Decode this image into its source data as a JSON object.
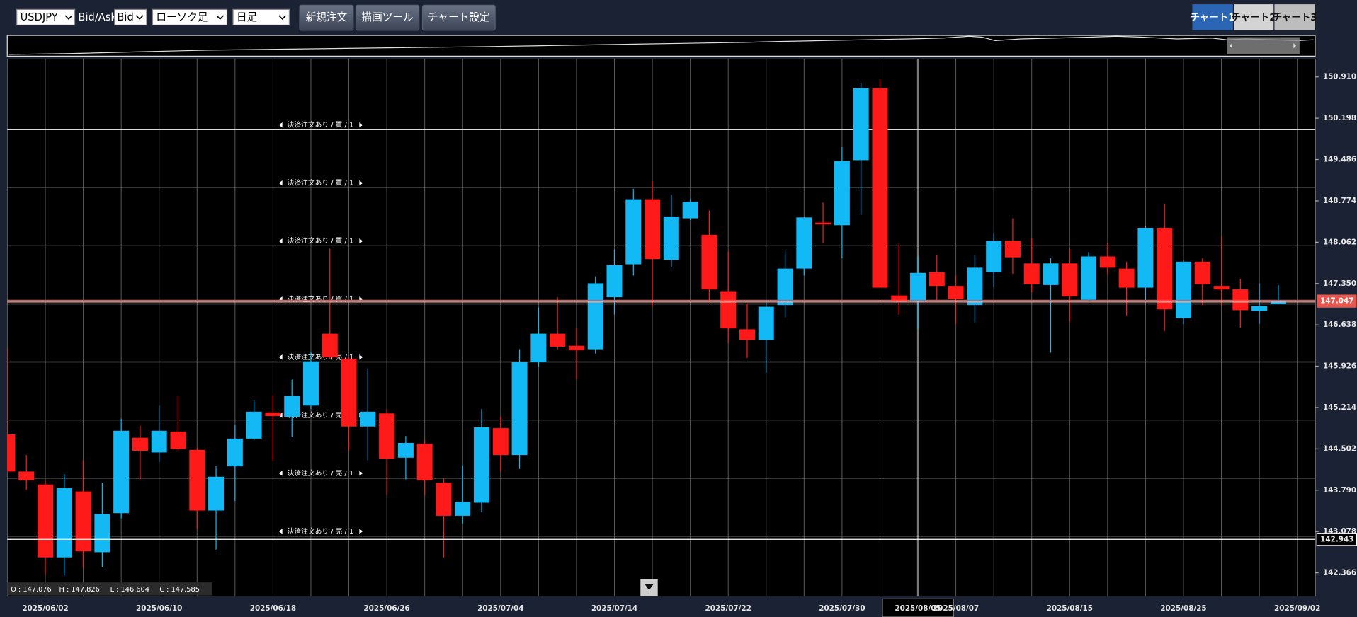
{
  "toolbar": {
    "symbol": "USDJPY",
    "bidask_label": "Bid/Ask",
    "bidask": "Bid",
    "chart_style": "ローソク足",
    "period": "日足",
    "buttons": [
      "新規注文",
      "描画ツール",
      "チャート設定"
    ],
    "tabs": [
      "チャート1",
      "チャート2",
      "チャート3"
    ]
  },
  "chart_data": {
    "type": "candlestick",
    "categories": [
      null,
      null,
      "2025/06/02",
      null,
      null,
      null,
      null,
      null,
      "2025/06/10",
      null,
      null,
      null,
      null,
      null,
      "2025/06/18",
      null,
      null,
      null,
      null,
      null,
      "2025/06/26",
      null,
      null,
      null,
      null,
      null,
      "2025/07/04",
      null,
      null,
      null,
      null,
      null,
      "2025/07/14",
      null,
      null,
      null,
      null,
      null,
      "2025/07/22",
      null,
      null,
      null,
      null,
      null,
      "2025/07/30",
      null,
      null,
      null,
      "2025/08/05",
      null,
      "2025/08/07",
      null,
      null,
      null,
      null,
      null,
      "2025/08/15",
      null,
      null,
      null,
      null,
      null,
      "2025/08/25",
      null,
      null,
      null,
      null,
      null,
      "2025/09/02"
    ],
    "open": [
      144.754,
      144.112,
      143.888,
      142.633,
      143.768,
      142.722,
      143.395,
      144.694,
      144.441,
      144.799,
      144.485,
      143.44,
      144.201,
      144.679,
      145.128,
      145.053,
      145.247,
      146.487,
      146.054,
      144.888,
      145.113,
      144.351,
      144.59,
      143.917,
      143.35,
      143.574,
      144.859,
      144.396,
      145.994,
      146.487,
      146.278,
      146.218,
      147.114,
      147.682,
      148.803,
      147.757,
      148.474,
      148.19,
      147.219,
      146.562,
      146.383,
      146.98,
      147.608,
      148.4,
      148.355,
      149.475,
      150.715,
      147.145,
      147.04,
      147.548,
      147.309,
      146.98,
      147.548,
      148.086,
      147.697,
      147.324,
      147.697,
      147.07,
      147.817,
      147.608,
      147.279,
      148.31,
      146.756,
      147.727,
      147.309,
      147.249,
      146.876,
      146.995,
      null
    ],
    "high": [
      146.248,
      144.396,
      143.95,
      144.067,
      144.306,
      143.917,
      145.023,
      144.904,
      145.247,
      145.412,
      144.52,
      144.201,
      144.918,
      145.337,
      145.426,
      145.695,
      146.173,
      147.951,
      146.08,
      145.89,
      145.188,
      144.724,
      144.649,
      143.992,
      144.216,
      145.188,
      145.053,
      146.218,
      146.935,
      147.114,
      146.577,
      147.473,
      147.936,
      148.982,
      149.117,
      148.878,
      148.803,
      148.609,
      147.906,
      147.01,
      147.04,
      147.906,
      148.504,
      148.743,
      149.699,
      150.805,
      150.865,
      148.026,
      147.817,
      147.847,
      147.488,
      147.847,
      148.205,
      148.474,
      148.131,
      147.787,
      147.951,
      147.892,
      148.041,
      147.727,
      148.34,
      148.728,
      147.757,
      147.787,
      148.161,
      147.428,
      147.354,
      147.324,
      null
    ],
    "low": [
      144.112,
      143.798,
      142.334,
      142.319,
      142.453,
      142.468,
      143.305,
      143.977,
      144.276,
      144.47,
      143.126,
      142.767,
      143.604,
      144.65,
      144.291,
      144.709,
      145.188,
      146.054,
      144.47,
      144.306,
      143.708,
      143.977,
      143.708,
      142.633,
      143.215,
      143.41,
      144.112,
      144.157,
      145.92,
      146.218,
      145.696,
      146.144,
      146.816,
      147.488,
      146.95,
      147.638,
      148.444,
      147.04,
      146.323,
      146.069,
      145.815,
      146.771,
      147.488,
      148.041,
      147.787,
      148.534,
      147.27,
      146.816,
      146.562,
      147.07,
      146.652,
      146.681,
      147.294,
      147.518,
      147.204,
      146.159,
      146.697,
      147.04,
      147.518,
      146.801,
      147.055,
      146.532,
      146.652,
      146.98,
      146.965,
      146.592,
      146.652,
      146.995,
      null
    ],
    "close": [
      144.112,
      143.962,
      142.633,
      143.828,
      142.737,
      143.38,
      144.814,
      144.47,
      144.814,
      144.5,
      143.44,
      144.022,
      144.679,
      145.143,
      145.068,
      145.412,
      146.009,
      146.084,
      144.888,
      145.143,
      144.336,
      144.605,
      143.962,
      143.35,
      143.589,
      144.874,
      144.396,
      145.994,
      146.487,
      146.263,
      146.203,
      147.354,
      147.667,
      148.803,
      147.772,
      148.504,
      148.758,
      147.249,
      146.577,
      146.383,
      146.95,
      147.608,
      148.489,
      148.37,
      149.46,
      150.715,
      147.279,
      147.04,
      147.533,
      147.309,
      147.085,
      147.623,
      148.086,
      147.802,
      147.339,
      147.697,
      147.13,
      147.817,
      147.623,
      147.279,
      148.31,
      146.906,
      147.727,
      147.339,
      147.249,
      146.891,
      146.965,
      147.047,
      null
    ],
    "up_color": "#13b9f4",
    "down_color": "#ff1a1a",
    "ylim": [
      141.963,
      151.223
    ],
    "yticks": [
      142.366,
      143.078,
      {
        "value": 143.79,
        "label": "143.790"
      },
      144.502,
      145.214,
      145.926,
      146.638,
      {
        "value": 147.35,
        "label": "147.350"
      },
      148.062,
      148.774,
      149.486,
      150.198,
      {
        "value": 150.91,
        "label": "150.910"
      }
    ],
    "order_lines": [
      {
        "label": "決済注文あり / 買 / 1",
        "value": 150
      },
      {
        "label": "決済注文あり / 買 / 1",
        "value": 149
      },
      {
        "label": "決済注文あり / 買 / 1",
        "value": 148
      },
      {
        "label": "決済注文あり / 買 / 1",
        "value": 147
      },
      {
        "label": "決済注文あり / 売 / 1",
        "value": 146
      },
      {
        "label": "決済注文あり / 売 / 1",
        "value": 145
      },
      {
        "label": "決済注文あり / 売 / 1",
        "value": 144
      },
      {
        "label": "決済注文あり / 売 / 1",
        "value": 143
      }
    ],
    "current_price": 147.047,
    "current_price_color": "#e8564e",
    "stop_price": 142.943,
    "ohlc_info": [
      "O : 147.076",
      "H : 147.826",
      "L : 146.604",
      "C : 147.585"
    ]
  }
}
